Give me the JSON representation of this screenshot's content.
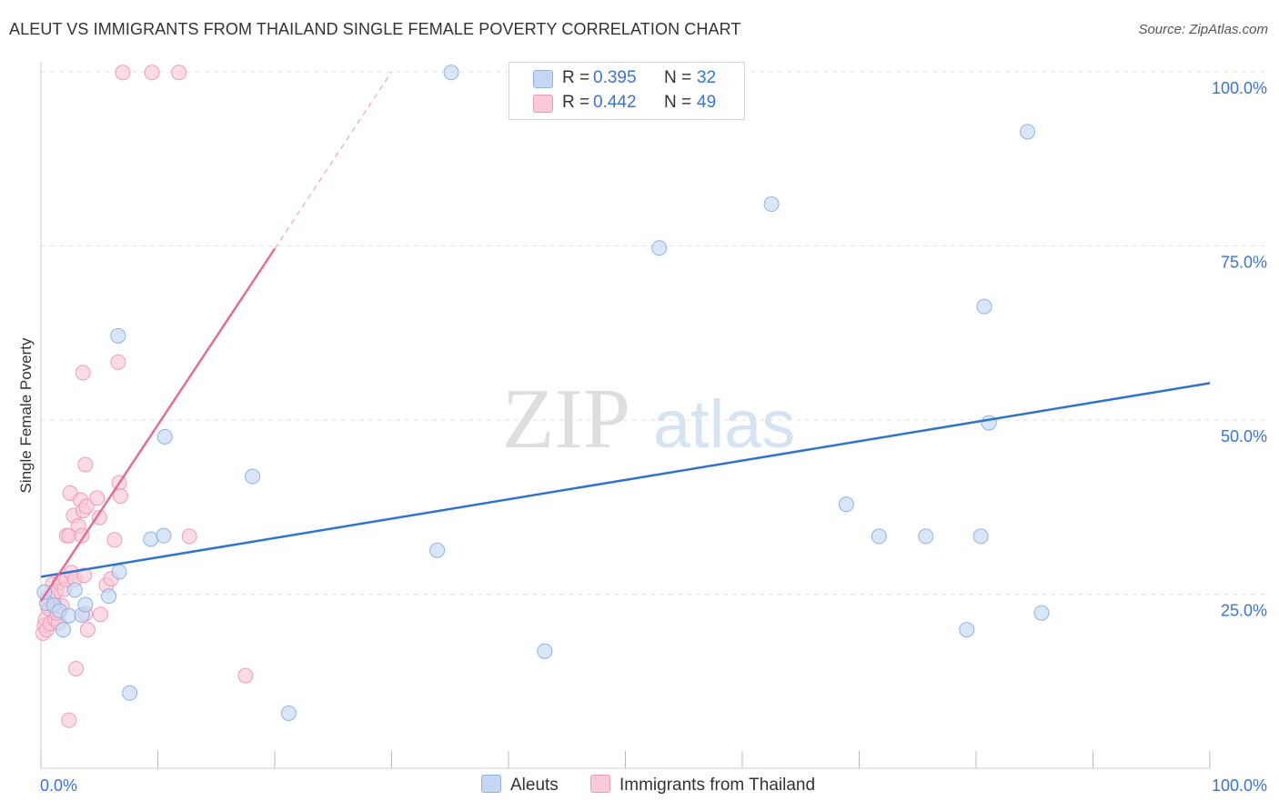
{
  "header": {
    "title": "ALEUT VS IMMIGRANTS FROM THAILAND SINGLE FEMALE POVERTY CORRELATION CHART",
    "source": "Source: ZipAtlas.com"
  },
  "watermark": {
    "zip": "ZIP",
    "atlas": "atlas"
  },
  "legend": {
    "rows": [
      {
        "r_label": "R =",
        "r_value": "0.395",
        "n_label": "N =",
        "n_value": "32"
      },
      {
        "r_label": "R =",
        "r_value": "0.442",
        "n_label": "N =",
        "n_value": "49"
      }
    ]
  },
  "bottom_legend": {
    "series_a": "Aleuts",
    "series_b": "Immigrants from Thailand"
  },
  "colors": {
    "blue_fill": "#c4d8f5",
    "blue_stroke": "#8eb2e6",
    "blue_line": "#2f72cf",
    "pink_fill": "#f9cad8",
    "pink_stroke": "#ef9bb6",
    "pink_line": "#e56c97",
    "grid": "#e2e2e2",
    "axis_text": "#3a74d2"
  },
  "chart_data": {
    "type": "scatter",
    "title": "ALEUT VS IMMIGRANTS FROM THAILAND SINGLE FEMALE POVERTY CORRELATION CHART",
    "xlabel": "",
    "ylabel": "Single Female Poverty",
    "xlim": [
      0,
      100
    ],
    "ylim": [
      0,
      100
    ],
    "x_tick_labels": [
      "0.0%",
      "100.0%"
    ],
    "y_tick_values": [
      25,
      50,
      75,
      100
    ],
    "y_tick_labels": [
      "25.0%",
      "50.0%",
      "75.0%",
      "100.0%"
    ],
    "series": [
      {
        "name": "Aleuts",
        "R": 0.395,
        "N": 32,
        "trend": {
          "x": [
            0,
            100
          ],
          "y": [
            27.5,
            55.3
          ]
        },
        "points": [
          [
            0.5,
            23.7
          ],
          [
            1.1,
            23.4
          ],
          [
            1.6,
            22.6
          ],
          [
            1.9,
            19.9
          ],
          [
            2.4,
            21.9
          ],
          [
            2.9,
            25.6
          ],
          [
            3.5,
            22.0
          ],
          [
            3.8,
            23.5
          ],
          [
            6.7,
            28.2
          ],
          [
            5.8,
            24.7
          ],
          [
            6.6,
            62.1
          ],
          [
            7.6,
            10.8
          ],
          [
            9.4,
            32.9
          ],
          [
            10.5,
            33.4
          ],
          [
            10.6,
            47.6
          ],
          [
            18.1,
            41.9
          ],
          [
            21.2,
            7.9
          ],
          [
            33.9,
            31.3
          ],
          [
            35.1,
            99.9
          ],
          [
            43.1,
            16.8
          ],
          [
            52.9,
            74.7
          ],
          [
            62.5,
            81.0
          ],
          [
            68.9,
            37.9
          ],
          [
            71.7,
            33.3
          ],
          [
            75.7,
            33.3
          ],
          [
            79.2,
            19.9
          ],
          [
            80.4,
            33.3
          ],
          [
            80.7,
            66.3
          ],
          [
            81.1,
            49.6
          ],
          [
            84.4,
            91.4
          ],
          [
            85.6,
            22.3
          ],
          [
            0.3,
            25.3
          ]
        ]
      },
      {
        "name": "Immigrants from Thailand",
        "R": 0.442,
        "N": 49,
        "trend": {
          "x": [
            0,
            20
          ],
          "y": [
            24.0,
            74.6
          ]
        },
        "trend_dashed": {
          "x": [
            20,
            30
          ],
          "y": [
            74.6,
            100
          ]
        },
        "points": [
          [
            0.2,
            19.4
          ],
          [
            0.3,
            20.5
          ],
          [
            0.4,
            21.4
          ],
          [
            0.5,
            19.9
          ],
          [
            0.7,
            22.9
          ],
          [
            0.8,
            20.8
          ],
          [
            1.0,
            26.4
          ],
          [
            1.1,
            24.0
          ],
          [
            1.2,
            21.4
          ],
          [
            1.3,
            25.4
          ],
          [
            1.5,
            20.9
          ],
          [
            1.6,
            26.7
          ],
          [
            1.8,
            23.3
          ],
          [
            2.0,
            25.7
          ],
          [
            2.2,
            27.1
          ],
          [
            2.2,
            33.4
          ],
          [
            2.4,
            33.4
          ],
          [
            2.5,
            39.5
          ],
          [
            2.6,
            28.1
          ],
          [
            2.8,
            36.3
          ],
          [
            2.9,
            27.1
          ],
          [
            3.0,
            14.3
          ],
          [
            2.4,
            6.9
          ],
          [
            3.2,
            34.8
          ],
          [
            3.4,
            38.5
          ],
          [
            3.5,
            33.4
          ],
          [
            3.6,
            37.0
          ],
          [
            3.6,
            56.8
          ],
          [
            3.7,
            27.7
          ],
          [
            3.8,
            22.2
          ],
          [
            3.8,
            43.6
          ],
          [
            3.9,
            37.6
          ],
          [
            4.0,
            19.9
          ],
          [
            4.8,
            38.8
          ],
          [
            5.0,
            36.0
          ],
          [
            5.1,
            22.1
          ],
          [
            5.6,
            26.3
          ],
          [
            6.0,
            27.2
          ],
          [
            6.3,
            32.8
          ],
          [
            6.6,
            58.3
          ],
          [
            6.7,
            41.0
          ],
          [
            6.8,
            39.1
          ],
          [
            7.0,
            99.9
          ],
          [
            9.5,
            99.9
          ],
          [
            11.8,
            99.9
          ],
          [
            12.7,
            33.3
          ],
          [
            17.5,
            13.3
          ],
          [
            0.6,
            24.5
          ],
          [
            1.4,
            22.3
          ]
        ]
      }
    ]
  }
}
